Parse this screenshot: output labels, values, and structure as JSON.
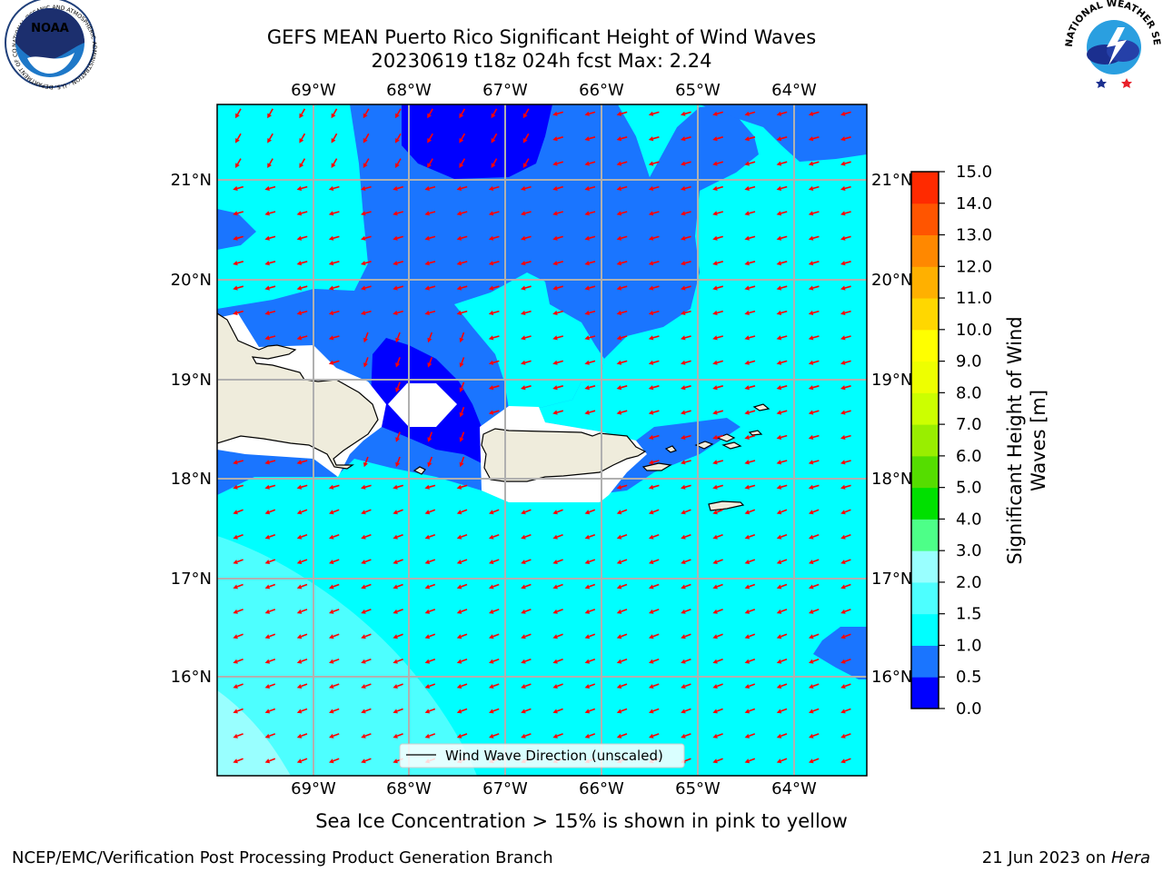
{
  "header": {
    "title_line1": "GEFS MEAN Puerto Rico Significant Height of Wind Waves",
    "title_line2": "20230619 t18z 024h fcst   Max: 2.24",
    "left_logo": "noaa-logo",
    "left_logo_text": "NOAA",
    "left_logo_ring_text": "NATIONAL OCEANIC AND ATMOSPHERIC ADMINISTRATION · U.S. DEPARTMENT OF COMMERCE",
    "right_logo": "national-weather-service-logo",
    "right_logo_ring_text": "NATIONAL WEATHER SERVICE"
  },
  "map": {
    "lon_labels": [
      "69°W",
      "68°W",
      "67°W",
      "66°W",
      "65°W",
      "64°W"
    ],
    "lat_labels": [
      "21°N",
      "20°N",
      "19°N",
      "18°N",
      "17°N",
      "16°N"
    ],
    "legend_label": "Wind Wave Direction (unscaled)",
    "arrow_color": "#ff0000",
    "land_color": "#efecdc",
    "grid_color": "#b0b0b0"
  },
  "colorbar": {
    "label_line1": "Significant Height of Wind",
    "label_line2": "Waves [m]",
    "ticks": [
      "0.0",
      "0.5",
      "1.0",
      "1.5",
      "2.0",
      "3.0",
      "4.0",
      "5.0",
      "6.0",
      "7.0",
      "8.0",
      "9.0",
      "10.0",
      "11.0",
      "12.0",
      "13.0",
      "14.0",
      "15.0"
    ],
    "colors": [
      "#0000ff",
      "#1a75ff",
      "#00ffff",
      "#4dffff",
      "#99ffff",
      "#4dff88",
      "#00e000",
      "#55dd00",
      "#99ee00",
      "#ccff00",
      "#eeff00",
      "#ffff00",
      "#ffd700",
      "#ffb000",
      "#ff8800",
      "#ff5500",
      "#ff2a00"
    ]
  },
  "footer": {
    "note": "Sea Ice Concentration > 15% is shown in pink to yellow",
    "credit": "NCEP/EMC/Verification Post Processing Product Generation Branch",
    "date_text": "21 Jun 2023 on ",
    "machine": "Hera"
  }
}
